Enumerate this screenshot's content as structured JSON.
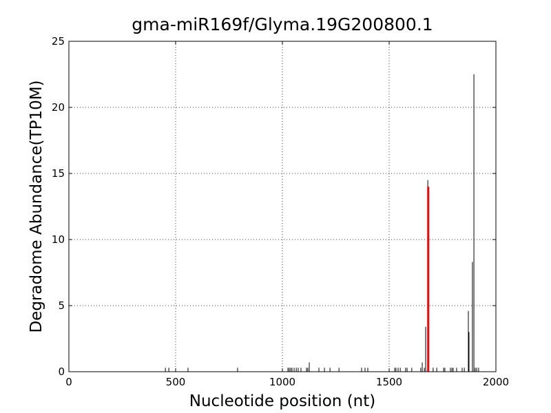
{
  "chart_data": {
    "type": "stem",
    "title": "gma-miR169f/Glyma.19G200800.1",
    "xlabel": "Nucleotide position (nt)",
    "ylabel": "Degradome Abundance(TP10M)",
    "xlim": [
      0,
      2000
    ],
    "xticks": [
      0,
      500,
      1000,
      1500,
      2000
    ],
    "ylim": [
      0,
      25
    ],
    "yticks": [
      0,
      5,
      10,
      15,
      20,
      25
    ],
    "grid": true,
    "series": [
      {
        "color": "#000000",
        "x": [
          452,
          468,
          558,
          790,
          1026,
          1032,
          1039,
          1045,
          1055,
          1065,
          1074,
          1087,
          1113,
          1119,
          1126,
          1171,
          1197,
          1223,
          1265,
          1371,
          1387,
          1400,
          1526,
          1532,
          1542,
          1552,
          1577,
          1584,
          1606,
          1648,
          1655,
          1665,
          1671,
          1681,
          1706,
          1723,
          1755,
          1761,
          1787,
          1794,
          1800,
          1816,
          1842,
          1852,
          1871,
          1874,
          1890,
          1897,
          1903,
          1910,
          1919
        ],
        "values": [
          0.3,
          0.3,
          0.3,
          0.3,
          0.3,
          0.3,
          0.3,
          0.3,
          0.3,
          0.3,
          0.3,
          0.3,
          0.3,
          0.3,
          0.7,
          0.3,
          0.3,
          0.3,
          0.3,
          0.3,
          0.3,
          0.3,
          0.3,
          0.3,
          0.3,
          0.3,
          0.3,
          0.3,
          0.3,
          0.3,
          0.7,
          0.3,
          3.4,
          14.5,
          0.3,
          0.3,
          0.3,
          0.3,
          0.3,
          0.3,
          0.3,
          0.3,
          0.3,
          0.3,
          4.6,
          3.0,
          8.3,
          22.5,
          0.3,
          0.3,
          0.3
        ]
      },
      {
        "color": "#ff0000",
        "x": [
          1683
        ],
        "values": [
          14
        ]
      }
    ]
  }
}
